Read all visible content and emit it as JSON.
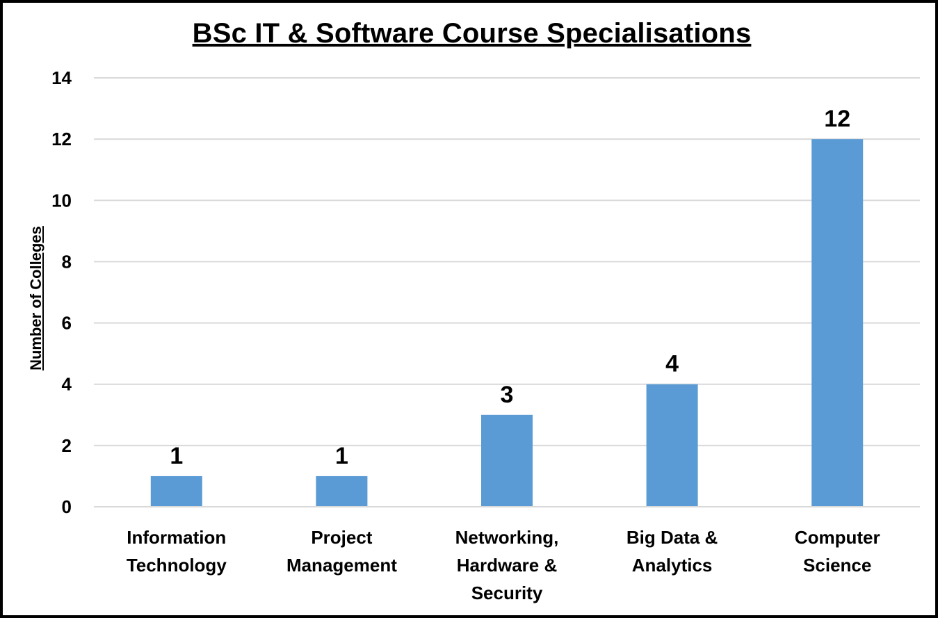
{
  "chart_data": {
    "type": "bar",
    "title": "BSc IT & Software Course Specialisations",
    "ylabel": "Number of Colleges",
    "xlabel": "",
    "categories": [
      [
        "Information",
        "Technology"
      ],
      [
        "Project",
        "Management"
      ],
      [
        "Networking,",
        "Hardware &",
        "Security"
      ],
      [
        "Big Data &",
        "Analytics"
      ],
      [
        "Computer",
        "Science"
      ]
    ],
    "values": [
      1,
      1,
      3,
      4,
      12
    ],
    "data_labels": [
      "1",
      "1",
      "3",
      "4",
      "12"
    ],
    "ylim": [
      0,
      14
    ],
    "yticks": [
      "0",
      "2",
      "4",
      "6",
      "8",
      "10",
      "12",
      "14"
    ],
    "grid": true,
    "bar_color": "#5B9BD5",
    "grid_color": "#D9D9D9"
  }
}
